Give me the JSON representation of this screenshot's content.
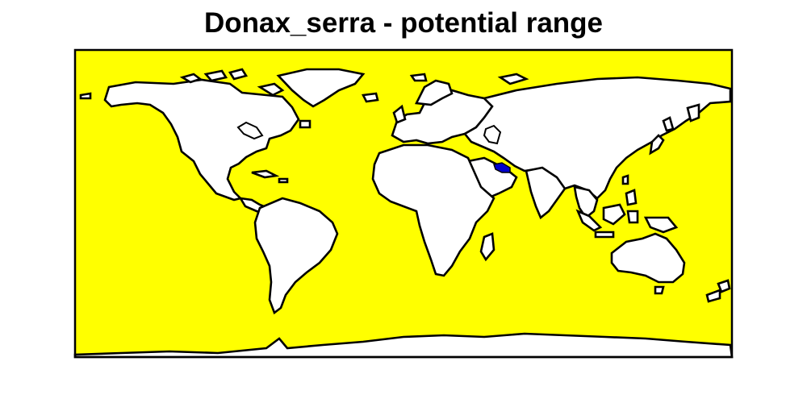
{
  "map": {
    "title": "Donax_serra - potential range",
    "colors": {
      "ocean_suitable": "#ffff00",
      "land": "#ffffff",
      "outline": "#000000",
      "highlight": "#0000cc",
      "background": "#ffffff"
    },
    "projection": "equirectangular",
    "highlighted_region": "Persian Gulf"
  }
}
